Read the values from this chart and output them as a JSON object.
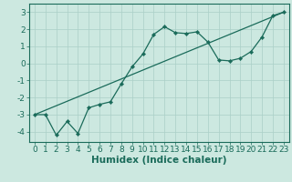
{
  "title": "",
  "xlabel": "Humidex (Indice chaleur)",
  "ylabel": "",
  "bg_color": "#cce8e0",
  "line_color": "#1a6b5a",
  "grid_color": "#aacfc7",
  "line1_x": [
    0,
    1,
    2,
    3,
    4,
    5,
    6,
    7,
    8,
    9,
    10,
    11,
    12,
    13,
    14,
    15,
    16,
    17,
    18,
    19,
    20,
    21,
    22,
    23
  ],
  "line1_y": [
    -3.0,
    -3.0,
    -4.2,
    -3.4,
    -4.1,
    -2.6,
    -2.4,
    -2.25,
    -1.2,
    -0.2,
    0.55,
    1.7,
    2.15,
    1.8,
    1.75,
    1.85,
    1.25,
    0.2,
    0.15,
    0.3,
    0.7,
    1.55,
    2.8,
    3.0
  ],
  "line2_x": [
    0,
    23
  ],
  "line2_y": [
    -3.0,
    3.0
  ],
  "xlim": [
    -0.5,
    23.5
  ],
  "ylim": [
    -4.6,
    3.5
  ],
  "xticks": [
    0,
    1,
    2,
    3,
    4,
    5,
    6,
    7,
    8,
    9,
    10,
    11,
    12,
    13,
    14,
    15,
    16,
    17,
    18,
    19,
    20,
    21,
    22,
    23
  ],
  "yticks": [
    -4,
    -3,
    -2,
    -1,
    0,
    1,
    2,
    3
  ],
  "fontsize_tick": 6.5,
  "fontsize_label": 7.5
}
